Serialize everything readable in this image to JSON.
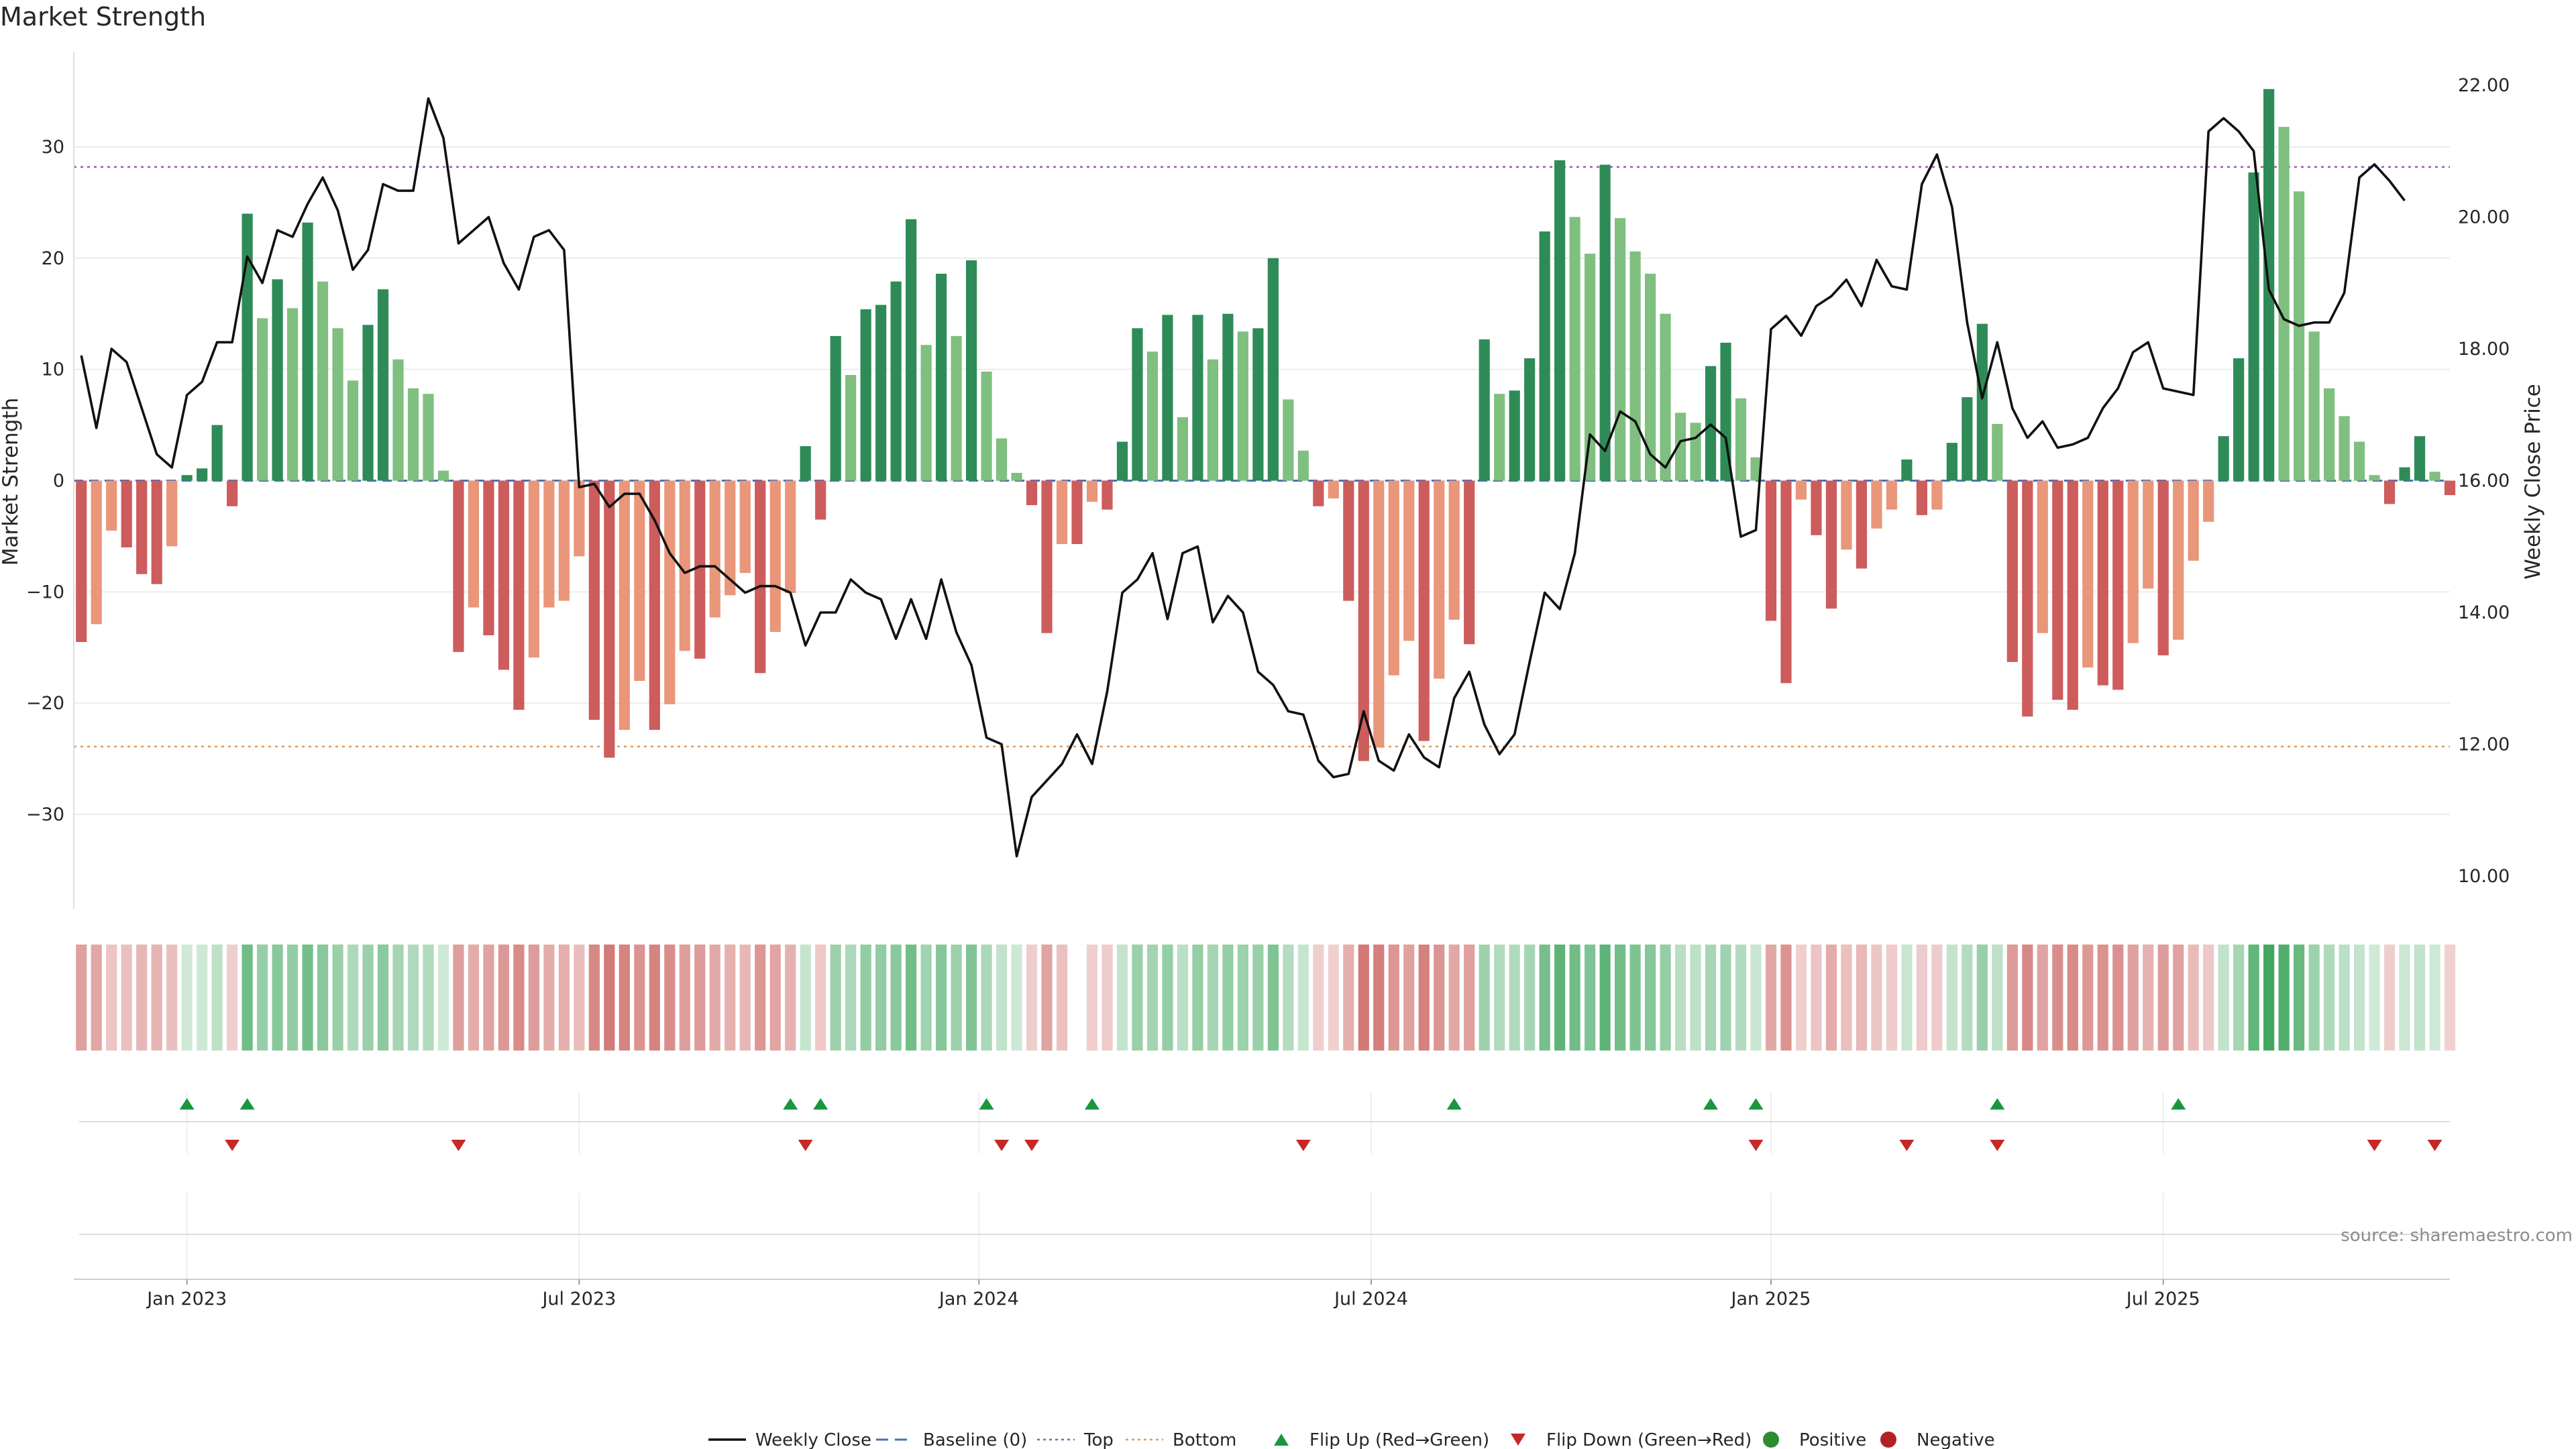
{
  "chart_data": {
    "type": "bar",
    "title": "Market Strength",
    "ylabel_left": "Market Strength",
    "ylabel_right": "Weekly Close Price",
    "source": "source: sharemaestro.com",
    "ylim_left": [
      -38.5,
      38.5
    ],
    "ylim_right": [
      9.5,
      22.5
    ],
    "yticks_left": [
      {
        "v": 30,
        "label": "30"
      },
      {
        "v": 20,
        "label": "20"
      },
      {
        "v": 10,
        "label": "10"
      },
      {
        "v": 0,
        "label": "0"
      },
      {
        "v": -10,
        "label": "−10"
      },
      {
        "v": -20,
        "label": "−20"
      },
      {
        "v": -30,
        "label": "−30"
      }
    ],
    "yticks_right": [
      {
        "v": 22,
        "label": "22.00"
      },
      {
        "v": 20,
        "label": "20.00"
      },
      {
        "v": 18,
        "label": "18.00"
      },
      {
        "v": 16,
        "label": "16.00"
      },
      {
        "v": 14,
        "label": "14.00"
      },
      {
        "v": 12,
        "label": "12.00"
      },
      {
        "v": 10,
        "label": "10.00"
      }
    ],
    "xticks": [
      {
        "week": 7,
        "label": "Jan 2023"
      },
      {
        "week": 33,
        "label": "Jul 2023"
      },
      {
        "week": 59.5,
        "label": "Jan 2024"
      },
      {
        "week": 85.5,
        "label": "Jul 2024"
      },
      {
        "week": 112,
        "label": "Jan 2025"
      },
      {
        "week": 138,
        "label": "Jul 2025"
      }
    ],
    "reference_lines": {
      "baseline": 0,
      "top": 28.2,
      "bottom": -23.9
    },
    "week_range": [
      -0.5,
      157
    ],
    "series": [
      {
        "name": "Weekly Close",
        "kind": "line",
        "values": [
          17.9,
          16.8,
          18.0,
          17.8,
          17.1,
          16.4,
          16.2,
          17.3,
          17.5,
          18.1,
          18.1,
          19.4,
          19.0,
          19.8,
          19.7,
          20.2,
          20.6,
          20.1,
          19.2,
          19.5,
          20.5,
          20.4,
          20.4,
          21.8,
          21.2,
          19.6,
          19.8,
          20.0,
          19.3,
          18.9,
          19.7,
          19.8,
          19.5,
          15.9,
          15.95,
          15.6,
          15.8,
          15.8,
          15.4,
          14.9,
          14.6,
          14.7,
          14.7,
          14.5,
          14.3,
          14.4,
          14.4,
          14.3,
          13.5,
          14.0,
          14.0,
          14.5,
          14.3,
          14.2,
          13.6,
          14.2,
          13.6,
          14.5,
          13.7,
          13.2,
          12.1,
          12.0,
          10.3,
          11.2,
          11.45,
          11.7,
          12.15,
          11.7,
          12.8,
          14.3,
          14.5,
          14.9,
          13.9,
          14.9,
          15.0,
          13.85,
          14.25,
          14.0,
          13.1,
          12.9,
          12.5,
          12.45,
          11.75,
          11.5,
          11.55,
          12.5,
          11.75,
          11.6,
          12.15,
          11.8,
          11.65,
          12.7,
          13.1,
          12.3,
          11.85,
          12.15,
          13.25,
          14.3,
          14.05,
          14.9,
          16.7,
          16.45,
          17.05,
          16.9,
          16.4,
          16.2,
          16.6,
          16.65,
          16.85,
          16.65,
          15.15,
          15.25,
          18.3,
          18.5,
          18.2,
          18.65,
          18.8,
          19.05,
          18.65,
          19.35,
          18.95,
          18.9,
          20.5,
          20.95,
          20.15,
          18.4,
          17.25,
          18.1,
          17.1,
          16.65,
          16.9,
          16.5,
          16.55,
          16.65,
          17.1,
          17.4,
          17.95,
          18.1,
          17.4,
          17.35,
          17.3,
          21.3,
          21.5,
          21.3,
          21.0,
          18.9,
          18.45,
          18.35,
          18.4,
          18.4,
          18.85,
          20.6,
          20.8,
          20.55,
          20.25
        ]
      },
      {
        "name": "Market Strength",
        "kind": "bar",
        "values": [
          -14.5,
          -12.9,
          -4.5,
          -6.0,
          -8.4,
          -9.3,
          -5.9,
          0.5,
          1.1,
          5.0,
          -2.3,
          24.0,
          14.6,
          18.1,
          15.5,
          23.2,
          17.9,
          13.7,
          9.0,
          14.0,
          17.2,
          10.9,
          8.3,
          7.8,
          0.9,
          -15.4,
          -11.4,
          -13.9,
          -17.0,
          -20.6,
          -15.9,
          -11.4,
          -10.8,
          -6.8,
          -21.5,
          -24.9,
          -22.4,
          -18.0,
          -22.4,
          -20.1,
          -15.3,
          -16.0,
          -12.3,
          -10.3,
          -8.3,
          -17.3,
          -13.6,
          -10.1,
          3.1,
          -3.5,
          13.0,
          9.5,
          15.4,
          15.8,
          17.9,
          23.5,
          12.2,
          18.6,
          13.0,
          19.8,
          9.8,
          3.8,
          0.7,
          -2.2,
          -13.7,
          -5.7,
          -5.7,
          -1.9,
          -2.6,
          3.5,
          13.7,
          11.6,
          14.9,
          5.7,
          14.9,
          10.9,
          15.0,
          13.4,
          13.7,
          20.0,
          7.3,
          2.7,
          -2.3,
          -1.6,
          -10.8,
          -25.2,
          -24.0,
          -17.5,
          -14.4,
          -23.4,
          -17.8,
          -12.5,
          -14.7,
          12.7,
          7.8,
          8.1,
          11.0,
          22.4,
          28.8,
          23.7,
          20.4,
          28.4,
          23.6,
          20.6,
          18.6,
          15.0,
          6.1,
          5.2,
          10.3,
          12.4,
          7.4,
          2.1,
          -12.6,
          -18.2,
          -1.7,
          -4.9,
          -11.5,
          -6.2,
          -7.9,
          -4.3,
          -2.6,
          1.9,
          -3.1,
          -2.6,
          3.4,
          7.5,
          14.1,
          5.1,
          -16.3,
          -21.2,
          -13.7,
          -19.7,
          -20.6,
          -16.8,
          -18.4,
          -18.8,
          -14.6,
          -9.7,
          -15.7,
          -14.3,
          -7.2,
          -3.7,
          4.0,
          11.0,
          27.7,
          35.2,
          31.8,
          26.0,
          13.4,
          8.3,
          5.8,
          3.5,
          0.5,
          -2.1,
          1.2,
          4.0,
          0.8,
          -1.3
        ]
      },
      {
        "name": "Baseline (0)",
        "kind": "line",
        "value": 0
      },
      {
        "name": "Top",
        "kind": "line",
        "value": 28.2
      },
      {
        "name": "Bottom",
        "kind": "line",
        "value": -23.9
      }
    ],
    "color_strip": {
      "missing_week": 66
    },
    "flip_up_weeks": [
      7,
      11,
      47,
      49,
      60,
      67,
      91,
      108,
      111,
      127,
      139
    ],
    "flip_down_weeks": [
      10,
      25,
      48,
      61,
      63,
      81,
      111,
      121,
      127,
      152,
      156
    ],
    "legend": [
      {
        "label": "Weekly Close",
        "marker": "line-black"
      },
      {
        "label": "Baseline (0)",
        "marker": "dash-blue"
      },
      {
        "label": "Top",
        "marker": "dot-purple"
      },
      {
        "label": "Bottom",
        "marker": "dot-orange"
      },
      {
        "label": "Flip Up (Red→Green)",
        "marker": "triangle-up-green"
      },
      {
        "label": "Flip Down (Green→Red)",
        "marker": "triangle-down-red"
      },
      {
        "label": "Positive",
        "marker": "circle-green"
      },
      {
        "label": "Negative",
        "marker": "circle-red"
      }
    ],
    "legend_position": "bottom",
    "grid": "horizontal"
  }
}
